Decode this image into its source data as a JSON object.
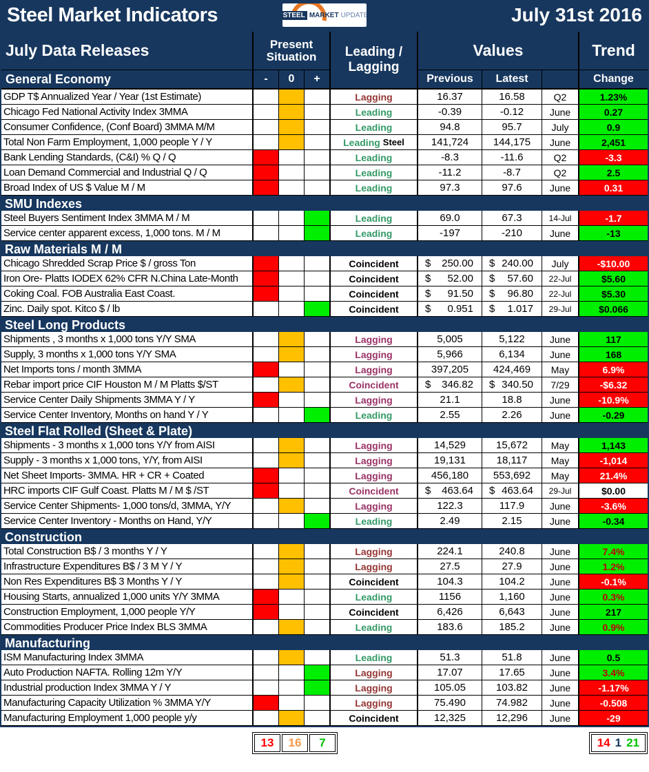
{
  "chart_data": {
    "type": "table",
    "title": "Steel Market Indicators",
    "date": "July 31st 2016",
    "logo": {
      "steel": "STEEL",
      "market": "MARKET",
      "update": "UPDATE"
    },
    "header": {
      "data_releases": "July Data Releases",
      "present_situation": "Present Situation",
      "leading_lagging": "Leading / Lagging",
      "values": "Values",
      "trend": "Trend",
      "minus": "-",
      "zero": "0",
      "plus": "+",
      "previous": "Previous",
      "latest": "Latest",
      "change": "Change"
    },
    "colors": {
      "navy": "#17375E",
      "situation_red": "#FF0000",
      "situation_gold": "#FFC000",
      "situation_green": "#00EE00",
      "leading_text": "#339966",
      "lagging_plum": "#993366",
      "lagging_darkred": "#943634",
      "trend_green_bg": "#00EE00",
      "trend_red_bg": "#FF0000"
    },
    "sections": [
      {
        "name": "General Economy",
        "rows": [
          {
            "l": "GDP T$ Annualized Year / Year (1st Estimate)",
            "s": "z",
            "ll": "Lagging",
            "lc": "darkred",
            "p": "16.37",
            "t": "16.58",
            "d": false,
            "per": "Q2",
            "tr": "1.23%",
            "tb": "g",
            "tc": "k"
          },
          {
            "l": "Chicago Fed National Activity Index 3MMA",
            "s": "z",
            "ll": "Leading",
            "lc": "green",
            "p": "-0.39",
            "t": "-0.12",
            "d": false,
            "per": "June",
            "tr": "0.27",
            "tb": "g",
            "tc": "k"
          },
          {
            "l": "Consumer Confidence, (Conf Board) 3MMA M/M",
            "s": "z",
            "ll": "Leading",
            "lc": "green",
            "p": "94.8",
            "t": "95.7",
            "d": false,
            "per": "July",
            "tr": "0.9",
            "tb": "g",
            "tc": "k"
          },
          {
            "l": "Total Non Farm Employment, 1,000 people Y / Y",
            "s": "z",
            "ll": "Leading",
            "lc": "green",
            "ll2": "Steel",
            "p": "141,724",
            "t": "144,175",
            "d": false,
            "per": "June",
            "tr": "2,451",
            "tb": "g",
            "tc": "k"
          },
          {
            "l": "Bank Lending Standards, (C&I) % Q / Q",
            "s": "m",
            "ll": "Leading",
            "lc": "green",
            "p": "-8.3",
            "t": "-11.6",
            "d": false,
            "per": "Q2",
            "tr": "-3.3",
            "tb": "r",
            "tc": "w"
          },
          {
            "l": "Loan Demand Commercial and Industrial Q / Q",
            "s": "m",
            "ll": "Leading",
            "lc": "green",
            "p": "-11.2",
            "t": "-8.7",
            "d": false,
            "per": "Q2",
            "tr": "2.5",
            "tb": "g",
            "tc": "k"
          },
          {
            "l": "Broad Index of US $ Value M / M",
            "s": "m",
            "ll": "Leading",
            "lc": "green",
            "p": "97.3",
            "t": "97.6",
            "d": false,
            "per": "June",
            "tr": "0.31",
            "tb": "r",
            "tc": "w"
          }
        ]
      },
      {
        "name": "SMU Indexes",
        "rows": [
          {
            "l": "Steel Buyers Sentiment Index 3MMA M / M",
            "s": "p",
            "ll": "Leading",
            "lc": "green",
            "p": "69.0",
            "t": "67.3",
            "d": false,
            "per": "14-Jul",
            "tr": "-1.7",
            "tb": "r",
            "tc": "w"
          },
          {
            "l": "Service center apparent excess, 1,000 tons. M / M",
            "s": "p",
            "ll": "Leading",
            "lc": "green",
            "p": "-197",
            "t": "-210",
            "d": false,
            "per": "June",
            "tr": "-13",
            "tb": "g",
            "tc": "k"
          }
        ]
      },
      {
        "name": "Raw Materials M / M",
        "rows": [
          {
            "l": "Chicago Shredded Scrap Price $ / gross Ton",
            "s": "m",
            "ll": "Coincident",
            "lc": "black",
            "p": "250.00",
            "t": "240.00",
            "d": true,
            "per": "July",
            "tr": "-$10.00",
            "tb": "r",
            "tc": "w"
          },
          {
            "l": "Iron Ore- Platts IODEX 62% CFR N.China Late-Month",
            "s": "m",
            "ll": "Coincident",
            "lc": "black",
            "p": "52.00",
            "t": "57.60",
            "d": true,
            "per": "22-Jul",
            "tr": "$5.60",
            "tb": "g",
            "tc": "k"
          },
          {
            "l": "Coking Coal. FOB Australia East Coast.",
            "s": "m",
            "ll": "Coincident",
            "lc": "black",
            "p": "91.50",
            "t": "96.80",
            "d": true,
            "per": "22-Jul",
            "tr": "$5.30",
            "tb": "g",
            "tc": "k"
          },
          {
            "l": "Zinc. Daily spot. Kitco $ / lb",
            "s": "p",
            "ll": "Coincident",
            "lc": "black",
            "p": "0.951",
            "t": "1.017",
            "d": true,
            "per": "29-Jul",
            "tr": "$0.066",
            "tb": "g",
            "tc": "k"
          }
        ]
      },
      {
        "name": "Steel Long Products",
        "rows": [
          {
            "l": "Shipments , 3 months x 1,000 tons Y/Y SMA",
            "s": "z",
            "ll": "Lagging",
            "lc": "plum",
            "p": "5,005",
            "t": "5,122",
            "d": false,
            "per": "June",
            "tr": "117",
            "tb": "g",
            "tc": "k"
          },
          {
            "l": "Supply, 3 months x 1,000 tons Y/Y SMA",
            "s": "z",
            "ll": "Lagging",
            "lc": "plum",
            "p": "5,966",
            "t": "6,134",
            "d": false,
            "per": "June",
            "tr": "168",
            "tb": "g",
            "tc": "k"
          },
          {
            "l": "Net Imports tons / month 3MMA",
            "s": "m",
            "ll": "Lagging",
            "lc": "plum",
            "p": "397,205",
            "t": "424,469",
            "d": false,
            "per": "May",
            "tr": "6.9%",
            "tb": "r",
            "tc": "w"
          },
          {
            "l": "Rebar import price CIF Houston M / M Platts $/ST",
            "s": "z",
            "ll": "Coincident",
            "lc": "plum",
            "p": "346.82",
            "t": "340.50",
            "d": true,
            "per": "7/29",
            "tr": "-$6.32",
            "tb": "r",
            "tc": "w"
          },
          {
            "l": "Service Center Daily Shipments 3MMA Y / Y",
            "s": "m",
            "ll": "Lagging",
            "lc": "plum",
            "p": "21.1",
            "t": "18.8",
            "d": false,
            "per": "June",
            "tr": "-10.9%",
            "tb": "r",
            "tc": "w"
          },
          {
            "l": "Service Center Inventory, Months on hand Y / Y",
            "s": "p",
            "ll": "Leading",
            "lc": "green",
            "p": "2.55",
            "t": "2.26",
            "d": false,
            "per": "June",
            "tr": "-0.29",
            "tb": "g",
            "tc": "k"
          }
        ]
      },
      {
        "name": "Steel Flat Rolled (Sheet & Plate)",
        "rows": [
          {
            "l": "Shipments - 3 months x 1,000 tons Y/Y from AISI",
            "s": "z",
            "ll": "Lagging",
            "lc": "plum",
            "p": "14,529",
            "t": "15,672",
            "d": false,
            "per": "May",
            "tr": "1,143",
            "tb": "g",
            "tc": "k"
          },
          {
            "l": "Supply - 3 months x 1,000 tons, Y/Y, from AISI",
            "s": "z",
            "ll": "Lagging",
            "lc": "plum",
            "p": "19,131",
            "t": "18,117",
            "d": false,
            "per": "May",
            "tr": "-1,014",
            "tb": "r",
            "tc": "w"
          },
          {
            "l": "Net Sheet Imports- 3MMA. HR + CR + Coated",
            "s": "m",
            "ll": "Lagging",
            "lc": "plum",
            "p": "456,180",
            "t": "553,692",
            "d": false,
            "per": "May",
            "tr": "21.4%",
            "tb": "r",
            "tc": "w"
          },
          {
            "l": "HRC imports CIF Gulf Coast. Platts M / M $ /ST",
            "s": "m",
            "ll": "Coincident",
            "lc": "plum",
            "p": "463.64",
            "t": "463.64",
            "d": true,
            "per": "29-Jul",
            "tr": "$0.00",
            "tb": "w",
            "tc": "k"
          },
          {
            "l": "Service Center Shipments- 1,000 tons/d, 3MMA, Y/Y",
            "s": "z",
            "ll": "Lagging",
            "lc": "plum",
            "p": "122.3",
            "t": "117.9",
            "d": false,
            "per": "June",
            "tr": "-3.6%",
            "tb": "r",
            "tc": "w"
          },
          {
            "l": "Service Center Inventory - Months on Hand, Y/Y",
            "s": "p",
            "ll": "Leading",
            "lc": "green",
            "p": "2.49",
            "t": "2.15",
            "d": false,
            "per": "June",
            "tr": "-0.34",
            "tb": "g",
            "tc": "k"
          }
        ]
      },
      {
        "name": "Construction",
        "rows": [
          {
            "l": "Total Construction B$ /  3 months Y / Y",
            "s": "z",
            "ll": "Lagging",
            "lc": "darkred",
            "p": "224.1",
            "t": "240.8",
            "d": false,
            "per": "June",
            "tr": "7.4%",
            "tb": "g",
            "tc": "r"
          },
          {
            "l": "Infrastructure Expenditures B$ / 3 M    Y / Y",
            "s": "z",
            "ll": "Lagging",
            "lc": "darkred",
            "p": "27.5",
            "t": "27.9",
            "d": false,
            "per": "June",
            "tr": "1.2%",
            "tb": "g",
            "tc": "r"
          },
          {
            "l": "Non Res Expenditures B$  3 Months   Y / Y",
            "s": "z",
            "ll": "Coincident",
            "lc": "black",
            "p": "104.3",
            "t": "104.2",
            "d": false,
            "per": "June",
            "tr": "-0.1%",
            "tb": "r",
            "tc": "w"
          },
          {
            "l": "Housing Starts, annualized 1,000 units Y/Y 3MMA",
            "s": "m",
            "ll": "Leading",
            "lc": "green",
            "p": "1156",
            "t": "1,160",
            "d": false,
            "per": "June",
            "tr": "0.3%",
            "tb": "g",
            "tc": "r"
          },
          {
            "l": "Construction Employment, 1,000 people Y/Y",
            "s": "m",
            "ll": "Coincident",
            "lc": "black",
            "p": "6,426",
            "t": "6,643",
            "d": false,
            "per": "June",
            "tr": "217",
            "tb": "g",
            "tc": "k"
          },
          {
            "l": "Commodities Producer Price Index BLS 3MMA",
            "s": "z",
            "ll": "Leading",
            "lc": "green",
            "p": "183.6",
            "t": "185.2",
            "d": false,
            "per": "June",
            "tr": "0.9%",
            "tb": "g",
            "tc": "r"
          }
        ]
      },
      {
        "name": "Manufacturing",
        "rows": [
          {
            "l": "ISM Manufacturing Index 3MMA",
            "s": "z",
            "ll": "Leading",
            "lc": "green",
            "p": "51.3",
            "t": "51.8",
            "d": false,
            "per": "June",
            "tr": "0.5",
            "tb": "g",
            "tc": "k"
          },
          {
            "l": "Auto Production NAFTA. Rolling 12m Y/Y",
            "s": "p",
            "ll": "Lagging",
            "lc": "darkred",
            "p": "17.07",
            "t": "17.65",
            "d": false,
            "per": "June",
            "tr": "3.4%",
            "tb": "g",
            "tc": "r"
          },
          {
            "l": "Industrial production Index 3MMA Y / Y",
            "s": "p",
            "ll": "Lagging",
            "lc": "darkred",
            "p": "105.05",
            "t": "103.82",
            "d": false,
            "per": "June",
            "tr": "-1.17%",
            "tb": "r",
            "tc": "w"
          },
          {
            "l": "Manufacturing Capacity Utilization % 3MMA Y/Y",
            "s": "m",
            "ll": "Lagging",
            "lc": "darkred",
            "p": "75.490",
            "t": "74.982",
            "d": false,
            "per": "June",
            "tr": "-0.508",
            "tb": "r",
            "tc": "w"
          },
          {
            "l": "Manufacturing Employment 1,000 people y/y",
            "s": "z",
            "ll": "Coincident",
            "lc": "black",
            "p": "12,325",
            "t": "12,296",
            "d": false,
            "per": "June",
            "tr": "-29",
            "tb": "r",
            "tc": "w"
          }
        ]
      }
    ],
    "summary": {
      "present": [
        {
          "v": "13",
          "c": "red"
        },
        {
          "v": "16",
          "c": "orange"
        },
        {
          "v": "7",
          "c": "green"
        }
      ],
      "trend": [
        {
          "v": "14",
          "c": "red"
        },
        {
          "v": "1",
          "c": "navy"
        },
        {
          "v": "21",
          "c": "green"
        }
      ]
    }
  }
}
